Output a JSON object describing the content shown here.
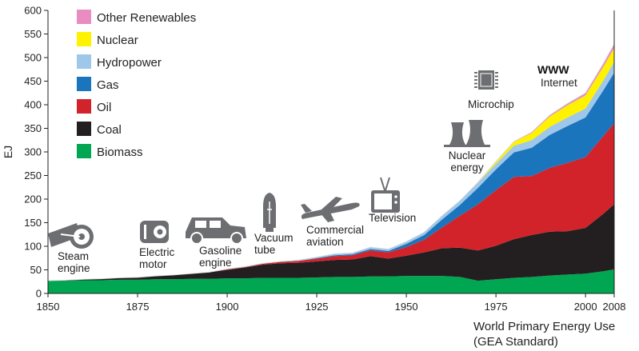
{
  "chart_data": {
    "type": "area",
    "stacked": true,
    "ylabel": "EJ",
    "xlim": [
      1850,
      2008
    ],
    "ylim": [
      0,
      600
    ],
    "xticks": [
      1850,
      1875,
      1900,
      1925,
      1950,
      1975,
      2000,
      2008
    ],
    "xtick_labels": [
      "1850",
      "1875",
      "1900",
      "1925",
      "1950",
      "1975",
      "2000",
      "2008"
    ],
    "yticks": [
      0,
      50,
      100,
      150,
      200,
      250,
      300,
      350,
      400,
      450,
      500,
      550,
      600
    ],
    "legend_position": "top-left",
    "x": [
      1850,
      1855,
      1860,
      1865,
      1870,
      1875,
      1880,
      1885,
      1890,
      1895,
      1900,
      1905,
      1910,
      1915,
      1920,
      1925,
      1930,
      1935,
      1940,
      1945,
      1950,
      1955,
      1960,
      1965,
      1970,
      1975,
      1980,
      1985,
      1990,
      1995,
      2000,
      2005,
      2008
    ],
    "series": [
      {
        "name": "Biomass",
        "color": "#00a651",
        "values": [
          27,
          27,
          28,
          28,
          29,
          29,
          30,
          30,
          31,
          31,
          32,
          32,
          33,
          33,
          33,
          34,
          35,
          35,
          36,
          36,
          37,
          37,
          37,
          35,
          27,
          30,
          33,
          35,
          38,
          40,
          42,
          47,
          51
        ]
      },
      {
        "name": "Coal",
        "color": "#231f20",
        "values": [
          0,
          1,
          2,
          3,
          4,
          5,
          7,
          9,
          11,
          14,
          18,
          23,
          28,
          31,
          32,
          34,
          36,
          37,
          43,
          38,
          43,
          50,
          59,
          62,
          64,
          71,
          82,
          89,
          93,
          92,
          97,
          122,
          138
        ]
      },
      {
        "name": "Oil",
        "color": "#d2232a",
        "values": [
          0,
          0,
          0,
          0,
          0,
          0,
          0,
          0,
          0,
          0,
          1,
          1,
          2,
          3,
          4,
          6,
          8,
          9,
          12,
          13,
          18,
          27,
          44,
          68,
          98,
          118,
          132,
          125,
          135,
          145,
          150,
          165,
          172
        ]
      },
      {
        "name": "Gas",
        "color": "#1b75bc",
        "values": [
          0,
          0,
          0,
          0,
          0,
          0,
          0,
          0,
          0,
          0,
          0,
          0,
          0,
          0,
          0,
          1,
          2,
          2,
          3,
          3,
          7,
          10,
          17,
          23,
          35,
          44,
          52,
          60,
          70,
          78,
          84,
          97,
          107
        ]
      },
      {
        "name": "Hydropower",
        "color": "#9ec7ea",
        "values": [
          0,
          0,
          0,
          0,
          0,
          0,
          0,
          0,
          0,
          0,
          1,
          1,
          1,
          1,
          2,
          2,
          3,
          3,
          4,
          4,
          5,
          6,
          8,
          9,
          11,
          12,
          14,
          16,
          17,
          18,
          19,
          21,
          23
        ]
      },
      {
        "name": "Nuclear",
        "color": "#fff200",
        "values": [
          0,
          0,
          0,
          0,
          0,
          0,
          0,
          0,
          0,
          0,
          0,
          0,
          0,
          0,
          0,
          0,
          0,
          0,
          0,
          0,
          0,
          0,
          0,
          0,
          1,
          4,
          8,
          15,
          22,
          26,
          28,
          29,
          29
        ]
      },
      {
        "name": "Other Renewables",
        "color": "#e98cc1",
        "values": [
          0,
          0,
          0,
          0,
          0,
          0,
          0,
          0,
          0,
          0,
          0,
          0,
          0,
          0,
          0,
          0,
          0,
          0,
          0,
          0,
          0,
          0,
          0,
          0,
          0,
          1,
          1,
          2,
          3,
          4,
          5,
          7,
          9
        ]
      }
    ],
    "legend_order": [
      "Other Renewables",
      "Nuclear",
      "Hydropower",
      "Gas",
      "Oil",
      "Coal",
      "Biomass"
    ],
    "annotations": [
      {
        "id": "steam-engine",
        "lines": [
          "Steam",
          "engine"
        ],
        "icon": "steam-engine-icon"
      },
      {
        "id": "electric-motor",
        "lines": [
          "Electric",
          "motor"
        ],
        "icon": "electric-motor-icon"
      },
      {
        "id": "gasoline-engine",
        "lines": [
          "Gasoline",
          "engine"
        ],
        "icon": "automobile-icon"
      },
      {
        "id": "vacuum-tube",
        "lines": [
          "Vacuum",
          "tube"
        ],
        "icon": "vacuum-tube-icon"
      },
      {
        "id": "commercial-aviation",
        "lines": [
          "Commercial",
          "aviation"
        ],
        "icon": "airplane-icon"
      },
      {
        "id": "television",
        "lines": [
          "Television"
        ],
        "icon": "television-icon"
      },
      {
        "id": "nuclear-energy",
        "lines": [
          "Nuclear",
          "energy"
        ],
        "icon": "cooling-tower-icon"
      },
      {
        "id": "microchip",
        "lines": [
          "Microchip"
        ],
        "icon": "microchip-icon"
      },
      {
        "id": "internet",
        "lines": [
          "WWW",
          "Internet"
        ],
        "icon": "www-text"
      }
    ],
    "subtitle_lines": [
      "World Primary Energy Use",
      "(GEA Standard)"
    ]
  }
}
